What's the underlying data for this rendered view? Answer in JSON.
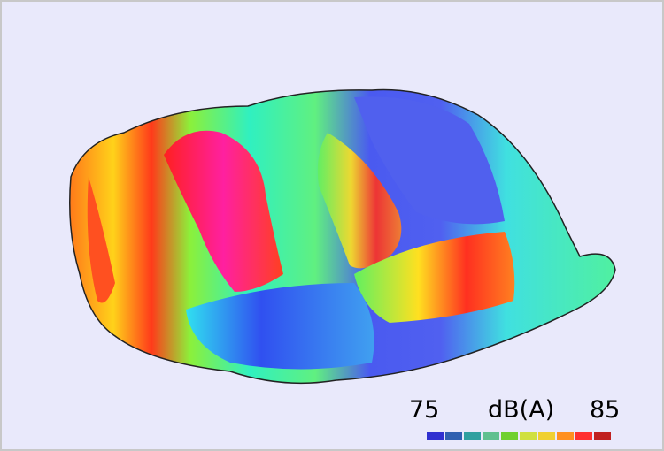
{
  "legend": {
    "min_label": "75",
    "unit_label": "dB(A)",
    "max_label": "85"
  }
}
